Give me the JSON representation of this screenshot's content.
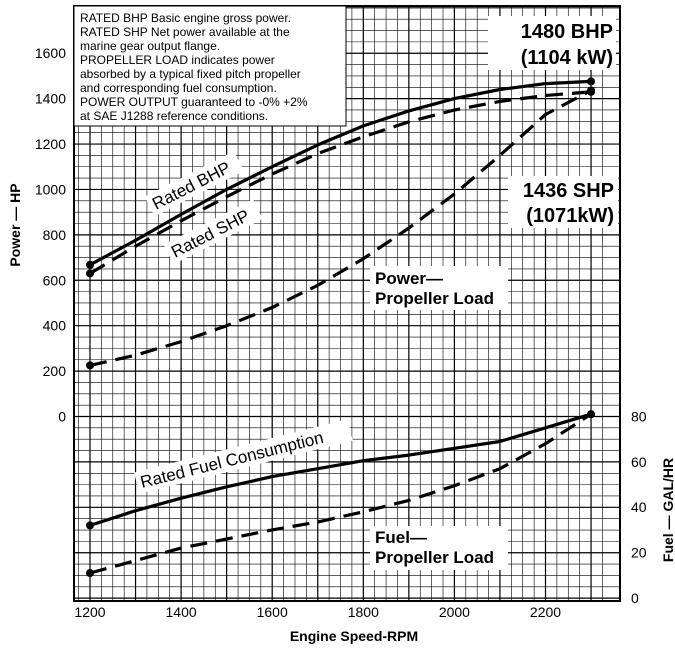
{
  "chart_data": {
    "type": "line",
    "xlabel": "Engine Speed-RPM",
    "ylabel_left": "Power — HP",
    "ylabel_right": "Fuel — GAL/HR",
    "xlim": [
      1200,
      2300
    ],
    "x_ticks": [
      "1200",
      "1400",
      "1600",
      "1800",
      "2000",
      "2200"
    ],
    "power_axis": {
      "ylim": [
        0,
        1600
      ],
      "ticks": [
        "0",
        "200",
        "400",
        "600",
        "800",
        "1000",
        "1200",
        "1400",
        "1600"
      ]
    },
    "fuel_axis": {
      "ylim": [
        0,
        80
      ],
      "ticks": [
        "0",
        "20",
        "40",
        "60",
        "80"
      ]
    },
    "grid": true,
    "notes": [
      "RATED BHP Basic engine gross power.",
      "RATED SHP Net power available at the",
      "marine gear output flange.",
      "PROPELLER LOAD indicates power",
      "absorbed by a typical fixed pitch propeller",
      "and corresponding fuel consumption.",
      "POWER OUTPUT guaranteed to -0% +2%",
      "at SAE J1288 reference conditions."
    ],
    "annotations": {
      "bhp_rating": [
        "1480 BHP",
        "(1104 kW)"
      ],
      "shp_rating": [
        "1436 SHP",
        "(1071kW)"
      ]
    },
    "series": [
      {
        "name": "Rated BHP",
        "axis": "power",
        "style": "solid",
        "x": [
          1200,
          1300,
          1400,
          1500,
          1600,
          1700,
          1800,
          1900,
          2000,
          2100,
          2200,
          2300
        ],
        "y": [
          668,
          776,
          890,
          1000,
          1100,
          1196,
          1280,
          1346,
          1400,
          1440,
          1466,
          1476
        ]
      },
      {
        "name": "Rated SHP",
        "axis": "power",
        "style": "dashed",
        "x": [
          1200,
          1300,
          1400,
          1500,
          1600,
          1700,
          1800,
          1900,
          2000,
          2100,
          2200,
          2300
        ],
        "y": [
          630,
          750,
          862,
          968,
          1068,
          1158,
          1232,
          1298,
          1350,
          1388,
          1414,
          1430
        ]
      },
      {
        "name": "Power— Propeller Load",
        "axis": "power",
        "style": "dashed",
        "x": [
          1200,
          1300,
          1400,
          1500,
          1600,
          1700,
          1800,
          1900,
          2000,
          2100,
          2200,
          2300
        ],
        "y": [
          225,
          270,
          330,
          400,
          480,
          578,
          695,
          830,
          980,
          1150,
          1330,
          1436
        ]
      },
      {
        "name": "Rated Fuel Consumption",
        "axis": "fuel",
        "style": "solid",
        "x": [
          1200,
          1300,
          1400,
          1500,
          1600,
          1700,
          1800,
          1900,
          2000,
          2100,
          2200,
          2300
        ],
        "y": [
          32,
          38.5,
          44,
          49,
          53.5,
          57,
          60.5,
          63,
          66,
          69,
          75,
          81
        ]
      },
      {
        "name": "Fuel— Propeller Load",
        "axis": "fuel",
        "style": "dashed",
        "x": [
          1200,
          1300,
          1400,
          1500,
          1600,
          1700,
          1800,
          1900,
          2000,
          2100,
          2200,
          2300
        ],
        "y": [
          11,
          16.5,
          22,
          26,
          30,
          33.5,
          38,
          43,
          49.5,
          57,
          68,
          81
        ]
      }
    ]
  }
}
